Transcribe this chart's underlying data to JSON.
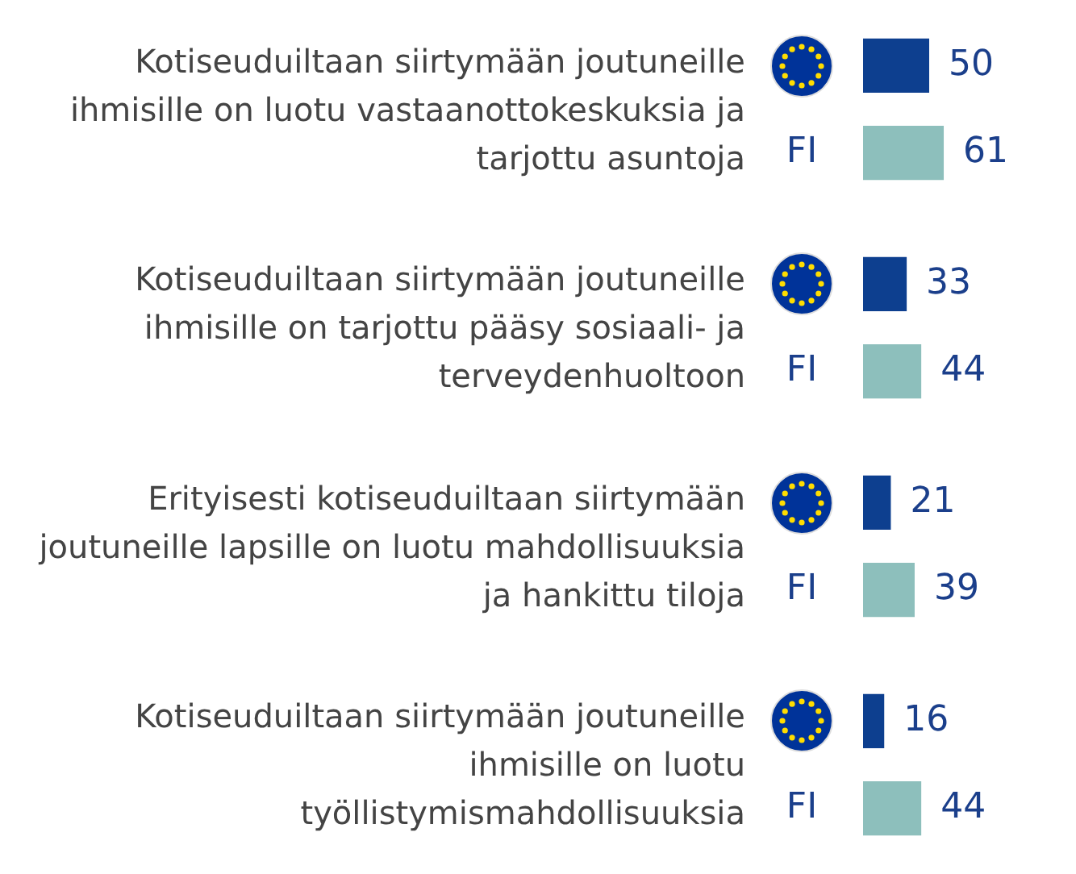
{
  "chart_data": {
    "type": "bar",
    "orientation": "horizontal",
    "categories": [
      "Kotiseuduiltaan siirtymään joutuneille ihmisille on luotu vastaanottokeskuksia ja tarjottu asuntoja",
      "Kotiseuduiltaan siirtymään joutuneille ihmisille on tarjottu pääsy sosiaali- ja terveydenhuoltoon",
      "Erityisesti kotiseuduiltaan siirtymään joutuneille lapsille on luotu mahdollisuuksia ja hankittu tiloja",
      "Kotiseuduiltaan siirtymään joutuneille ihmisille on luotu työllistymismahdollisuuksia"
    ],
    "series": [
      {
        "color": "#0d3f8f",
        "values": [
          50,
          33,
          21,
          16
        ]
      },
      {
        "name": "FI",
        "color": "#8dbfbc",
        "values": [
          61,
          44,
          39,
          44
        ]
      }
    ],
    "data_labels": true,
    "tick_labels": false,
    "legend": false
  }
}
